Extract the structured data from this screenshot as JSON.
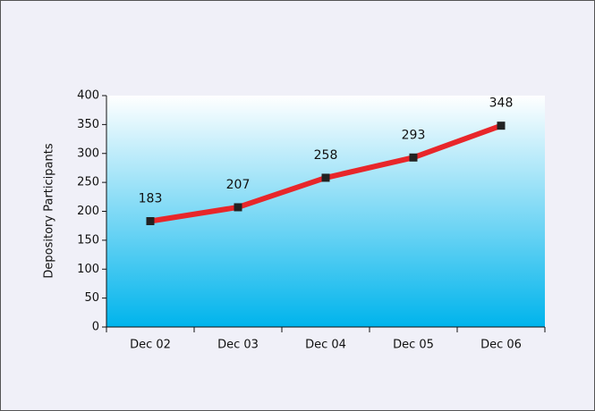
{
  "chart_data": {
    "type": "line",
    "ylabel": "Depository Participants",
    "categories": [
      "Dec 02",
      "Dec 03",
      "Dec 04",
      "Dec 05",
      "Dec 06"
    ],
    "series": [
      {
        "name": "Depository Participants",
        "color": "#e8262a",
        "values": [
          183,
          207,
          258,
          293,
          348
        ]
      }
    ],
    "marker_color": "#222222",
    "ylim": [
      0,
      400
    ],
    "yticks": [
      0,
      50,
      100,
      150,
      200,
      250,
      300,
      350,
      400
    ],
    "grid": false
  }
}
